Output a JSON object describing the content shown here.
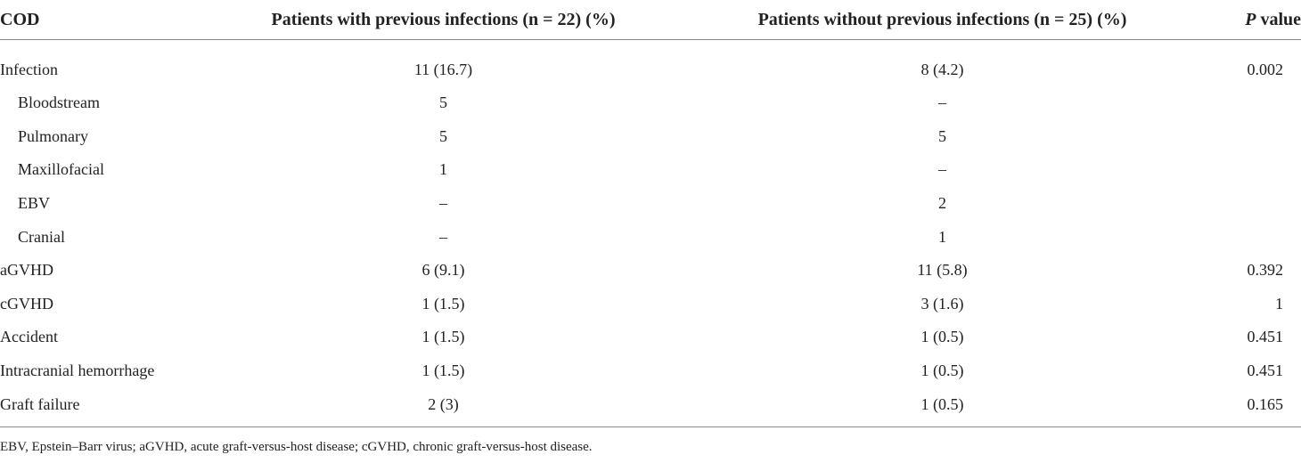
{
  "table": {
    "headers": {
      "cod": "COD",
      "with": "Patients with previous infections (n = 22) (%)",
      "without": "Patients without previous infections (n = 25) (%)",
      "p_italic": "P",
      "p_rest": " value"
    },
    "rows": [
      {
        "cod": "Infection",
        "with": "11 (16.7)",
        "without": "8 (4.2)",
        "p": "0.002"
      },
      {
        "cod": "Bloodstream",
        "with": "5",
        "without": "–",
        "p": ""
      },
      {
        "cod": "Pulmonary",
        "with": "5",
        "without": "5",
        "p": ""
      },
      {
        "cod": "Maxillofacial",
        "with": "1",
        "without": "–",
        "p": ""
      },
      {
        "cod": "EBV",
        "with": "–",
        "without": "2",
        "p": ""
      },
      {
        "cod": "Cranial",
        "with": "–",
        "without": "1",
        "p": ""
      },
      {
        "cod": "aGVHD",
        "with": "6 (9.1)",
        "without": "11 (5.8)",
        "p": "0.392"
      },
      {
        "cod": "cGVHD",
        "with": "1 (1.5)",
        "without": "3 (1.6)",
        "p": "1"
      },
      {
        "cod": "Accident",
        "with": "1 (1.5)",
        "without": "1 (0.5)",
        "p": "0.451"
      },
      {
        "cod": "Intracranial hemorrhage",
        "with": "1 (1.5)",
        "without": "1 (0.5)",
        "p": "0.451"
      },
      {
        "cod": "Graft failure",
        "with": "2 (3)",
        "without": "1 (0.5)",
        "p": "0.165"
      }
    ]
  },
  "footnote": "EBV, Epstein–Barr virus; aGVHD, acute graft-versus-host disease; cGVHD, chronic graft-versus-host disease."
}
